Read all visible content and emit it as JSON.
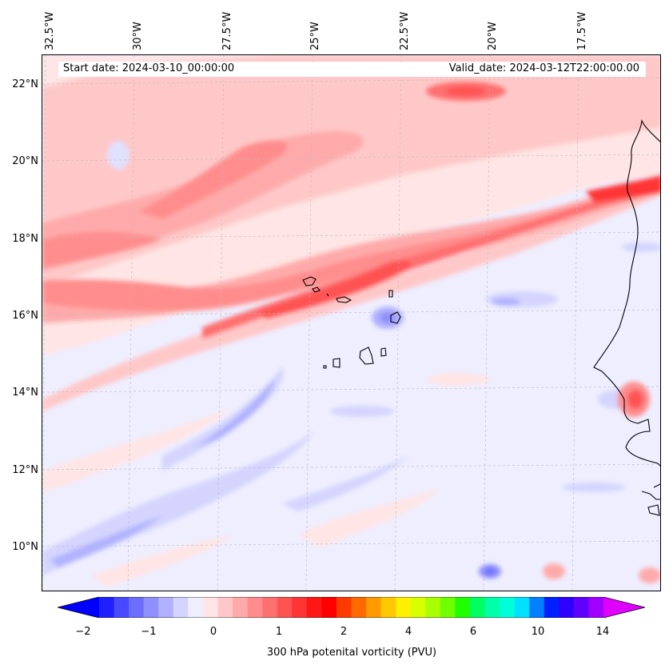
{
  "map": {
    "start_date": "Start date: 2024-03-10_00:00:00",
    "valid_date": "Valid_date: 2024-03-12T22:00:00.00",
    "lon_labels": [
      "32.5°W",
      "30°W",
      "27.5°W",
      "25°W",
      "22.5°W",
      "20°W",
      "17.5°W"
    ],
    "lat_labels": [
      "22°N",
      "20°N",
      "18°N",
      "16°N",
      "14°N",
      "12°N",
      "10°N"
    ],
    "extent": {
      "lon_min": -32.5,
      "lon_max": -15.2,
      "lat_min": 8.9,
      "lat_max": 22.8
    },
    "features": [
      "Cabo Verde islands",
      "West African coastline"
    ]
  },
  "colorbar": {
    "label": "300 hPa potenital vorticity (PVU)",
    "ticks": [
      "−2",
      "−1",
      "0",
      "1",
      "2",
      "4",
      "6",
      "10",
      "14"
    ],
    "colors": [
      "#0000ff",
      "#2020ff",
      "#4949ff",
      "#6c6cff",
      "#8f8fff",
      "#b1b1ff",
      "#d4d4ff",
      "#eeeeff",
      "#ffe5e5",
      "#ffc8c8",
      "#ffaaaa",
      "#ff8d8d",
      "#ff7070",
      "#ff5252",
      "#ff3434",
      "#ff1616",
      "#ff0000",
      "#ff3a00",
      "#ff6a00",
      "#ff9a00",
      "#ffc800",
      "#fff000",
      "#d8ff00",
      "#a8ff00",
      "#70ff00",
      "#20ff00",
      "#00ff60",
      "#00ffa8",
      "#00ffd8",
      "#00e0ff",
      "#0080ff",
      "#0020ff",
      "#3000ff",
      "#6000ff",
      "#a000ff",
      "#e000ff"
    ]
  }
}
